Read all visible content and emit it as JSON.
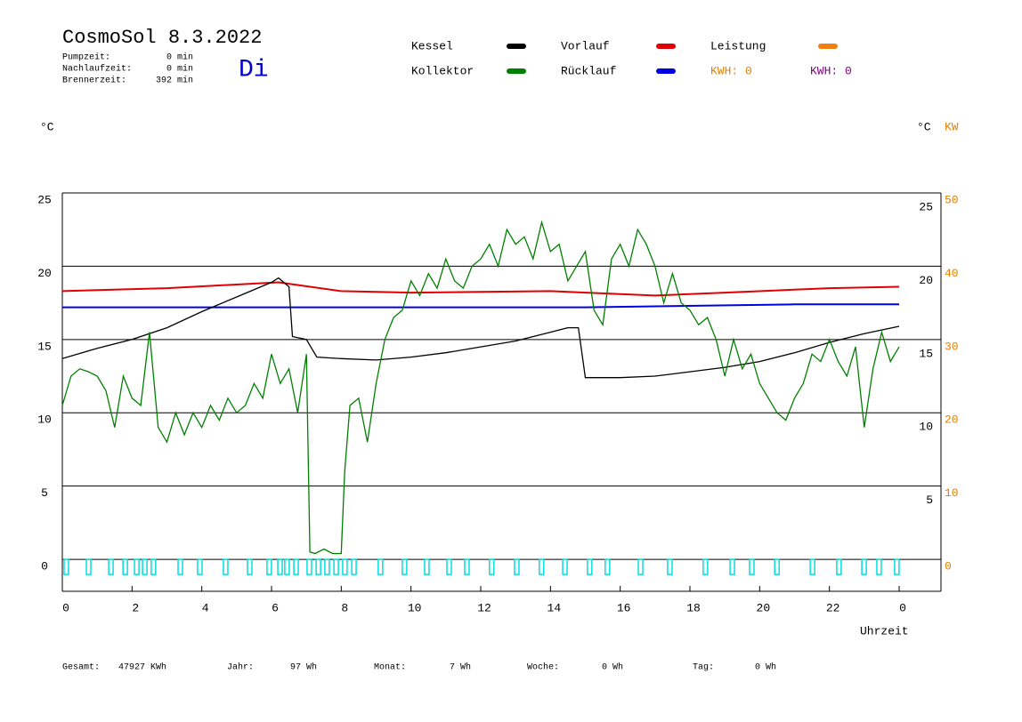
{
  "chart_data": {
    "type": "line",
    "title": "CosmoSol 8.3.2022",
    "day": "Di",
    "info": [
      [
        "Pumpzeit:",
        "0 min"
      ],
      [
        "Nachlaufzeit:",
        "0 min"
      ],
      [
        "Brennerzeit:",
        "392 min"
      ]
    ],
    "y_unit": "°C",
    "y_unit_right": "°C",
    "y2_unit": "KW",
    "xlabel": "Uhrzeit",
    "kwh_labels": [
      {
        "text": "KWH: 0",
        "color": "#e08000"
      },
      {
        "text": "KWH: 0",
        "color": "#800080"
      }
    ],
    "xlim": [
      0,
      25.2
    ],
    "xticks": [
      0,
      2,
      4,
      6,
      8,
      10,
      12,
      14,
      16,
      18,
      20,
      22,
      {
        "value": 24,
        "label": "0"
      }
    ],
    "ylim": [
      -2.18,
      25
    ],
    "yticks": [
      0,
      5,
      10,
      15,
      20,
      25
    ],
    "yticks_right": [
      5,
      10,
      15,
      20,
      25
    ],
    "y2lim": [
      -4.36,
      50
    ],
    "y2ticks": [
      0,
      10,
      20,
      30,
      40,
      50
    ],
    "grid": true,
    "series": [
      {
        "name": "Kessel",
        "color": "#000000",
        "x": [
          0,
          1,
          2,
          3,
          4,
          5,
          6,
          6.2,
          6.5,
          6.6,
          7,
          7.3,
          8,
          9,
          10,
          11,
          12,
          13,
          14,
          14.5,
          14.8,
          15,
          16,
          17,
          18,
          19,
          20,
          21,
          22,
          23,
          24
        ],
        "values": [
          13.7,
          14.4,
          15.0,
          15.8,
          16.9,
          17.9,
          18.9,
          19.2,
          18.6,
          15.2,
          15.0,
          13.8,
          13.7,
          13.6,
          13.8,
          14.1,
          14.5,
          14.9,
          15.5,
          15.8,
          15.8,
          12.4,
          12.4,
          12.5,
          12.8,
          13.1,
          13.5,
          14.1,
          14.8,
          15.4,
          15.9
        ]
      },
      {
        "name": "Kollektor",
        "color": "#008000",
        "x": [
          0,
          0.25,
          0.5,
          0.75,
          1,
          1.25,
          1.5,
          1.75,
          2,
          2.25,
          2.5,
          2.75,
          3,
          3.25,
          3.5,
          3.75,
          4,
          4.25,
          4.5,
          4.75,
          5,
          5.25,
          5.5,
          5.75,
          6,
          6.25,
          6.5,
          6.75,
          7,
          7.1,
          7.25,
          7.5,
          7.75,
          8,
          8.1,
          8.25,
          8.5,
          8.75,
          9,
          9.25,
          9.5,
          9.75,
          10,
          10.25,
          10.5,
          10.75,
          11,
          11.25,
          11.5,
          11.75,
          12,
          12.25,
          12.5,
          12.75,
          13,
          13.25,
          13.5,
          13.75,
          14,
          14.25,
          14.5,
          14.75,
          15,
          15.25,
          15.5,
          15.75,
          16,
          16.25,
          16.5,
          16.75,
          17,
          17.25,
          17.5,
          17.75,
          18,
          18.25,
          18.5,
          18.75,
          19,
          19.25,
          19.5,
          19.75,
          20,
          20.25,
          20.5,
          20.75,
          21,
          21.25,
          21.5,
          21.75,
          22,
          22.25,
          22.5,
          22.75,
          23,
          23.25,
          23.5,
          23.75,
          24
        ],
        "values": [
          10.5,
          12.5,
          13.0,
          12.8,
          12.5,
          11.5,
          9,
          12.5,
          11,
          10.5,
          15.5,
          9,
          8,
          10,
          8.5,
          10,
          9,
          10.5,
          9.5,
          11,
          10,
          10.5,
          12,
          11,
          14,
          12,
          13,
          10,
          14,
          0.5,
          0.4,
          0.7,
          0.4,
          0.4,
          6,
          10.5,
          11,
          8,
          12,
          15,
          16.5,
          17,
          19,
          18,
          19.5,
          18.5,
          20.5,
          19,
          18.5,
          20,
          20.5,
          21.5,
          20,
          22.5,
          21.5,
          22,
          20.5,
          23,
          21,
          21.5,
          19,
          20,
          21,
          17,
          16,
          20.5,
          21.5,
          20,
          22.5,
          21.5,
          20,
          17.5,
          19.5,
          17.5,
          17,
          16,
          16.5,
          15,
          12.5,
          15,
          13,
          14,
          12,
          11,
          10,
          9.5,
          11,
          12,
          14,
          13.5,
          15,
          13.5,
          12.5,
          14.5,
          9,
          13,
          15.5,
          13.5,
          14.5
        ]
      },
      {
        "name": "Vorlauf",
        "color": "#e00000",
        "x": [
          0,
          3,
          6.2,
          8,
          10,
          14,
          16,
          17,
          19,
          22,
          24
        ],
        "values": [
          18.3,
          18.5,
          18.9,
          18.3,
          18.2,
          18.3,
          18.1,
          18.0,
          18.2,
          18.5,
          18.6
        ]
      },
      {
        "name": "Rücklauf",
        "color": "#0000e0",
        "x": [
          0,
          6,
          10,
          15,
          21,
          24
        ],
        "values": [
          17.2,
          17.2,
          17.2,
          17.2,
          17.4,
          17.4
        ]
      },
      {
        "name": "Leistung",
        "color": "#f08010",
        "x": [],
        "values": []
      }
    ],
    "pump_color": "#00e0e0",
    "pump_on": [
      0.05,
      0.69,
      1.33,
      1.74,
      2.07,
      2.3,
      2.55,
      3.32,
      3.88,
      4.62,
      5.31,
      5.87,
      6.18,
      6.38,
      6.64,
      7.02,
      7.28,
      7.53,
      7.79,
      8.04,
      8.3,
      9.06,
      9.75,
      10.39,
      11.03,
      11.54,
      12.25,
      12.97,
      13.68,
      14.35,
      15.06,
      15.57,
      16.52,
      17.36,
      18.38,
      19.15,
      19.71,
      20.43,
      21.45,
      22.21,
      22.93,
      23.36,
      23.87
    ],
    "footer": [
      [
        "Gesamt:",
        "47927 KWh"
      ],
      [
        "Jahr:",
        "97 Wh"
      ],
      [
        "Monat:",
        "7 Wh"
      ],
      [
        "Woche:",
        "0 Wh"
      ],
      [
        "Tag:",
        "0 Wh"
      ]
    ]
  }
}
